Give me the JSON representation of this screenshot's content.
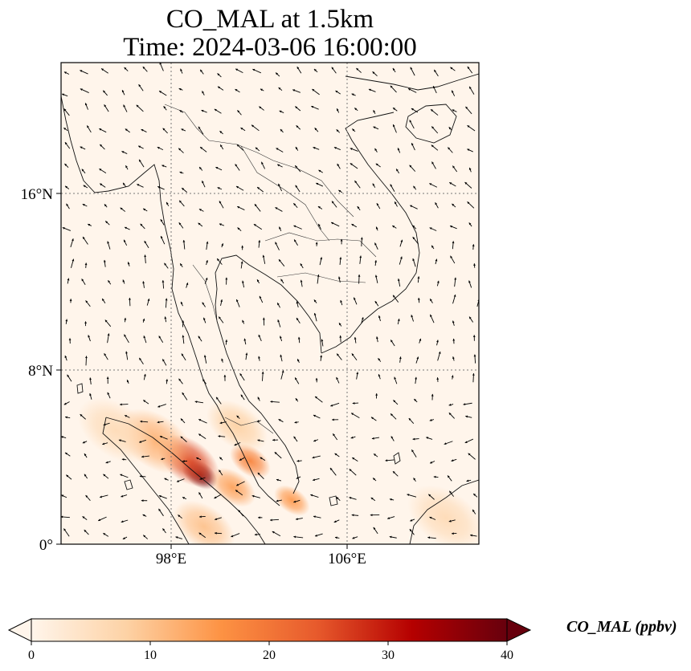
{
  "title": {
    "line1": "CO_MAL at 1.5km",
    "line2": "Time: 2024-03-06 16:00:00"
  },
  "map": {
    "lon_range": [
      93,
      112
    ],
    "lat_range": [
      0,
      22
    ],
    "lat_ticks": [
      {
        "value": 0,
        "label": "0°"
      },
      {
        "value": 8,
        "label": "8°N"
      },
      {
        "value": 16,
        "label": "16°N"
      }
    ],
    "lon_ticks": [
      {
        "value": 98,
        "label": "98°E"
      },
      {
        "value": 106,
        "label": "106°E"
      }
    ],
    "gridlines": "dotted",
    "background_color": "#fff5eb",
    "hotspots": [
      {
        "lon": 99.3,
        "lat": 3.2,
        "value": 40,
        "spread": 0.7
      },
      {
        "lon": 98.8,
        "lat": 3.8,
        "value": 26,
        "spread": 1.2
      },
      {
        "lon": 97.3,
        "lat": 4.7,
        "value": 12,
        "spread": 1.5
      },
      {
        "lon": 95.5,
        "lat": 5.2,
        "value": 6,
        "spread": 1.5
      },
      {
        "lon": 100.8,
        "lat": 2.6,
        "value": 14,
        "spread": 0.9
      },
      {
        "lon": 101.6,
        "lat": 3.8,
        "value": 18,
        "spread": 0.8
      },
      {
        "lon": 101.0,
        "lat": 5.4,
        "value": 8,
        "spread": 1.2
      },
      {
        "lon": 103.5,
        "lat": 2.0,
        "value": 15,
        "spread": 0.7
      },
      {
        "lon": 99.5,
        "lat": 0.8,
        "value": 10,
        "spread": 1.2
      },
      {
        "lon": 110.5,
        "lat": 1.2,
        "value": 6,
        "spread": 1.5
      }
    ]
  },
  "colorbar": {
    "label": "CO_MAL (ppbv)",
    "min": 0,
    "max": 40,
    "ticks": [
      {
        "value": 0,
        "label": "0"
      },
      {
        "value": 10,
        "label": "10"
      },
      {
        "value": 20,
        "label": "20"
      },
      {
        "value": 30,
        "label": "30"
      },
      {
        "value": 40,
        "label": "40"
      }
    ],
    "colormap": [
      "#fff5eb",
      "#fdd2a5",
      "#fd9243",
      "#e75a2c",
      "#b50000",
      "#67000d"
    ]
  }
}
